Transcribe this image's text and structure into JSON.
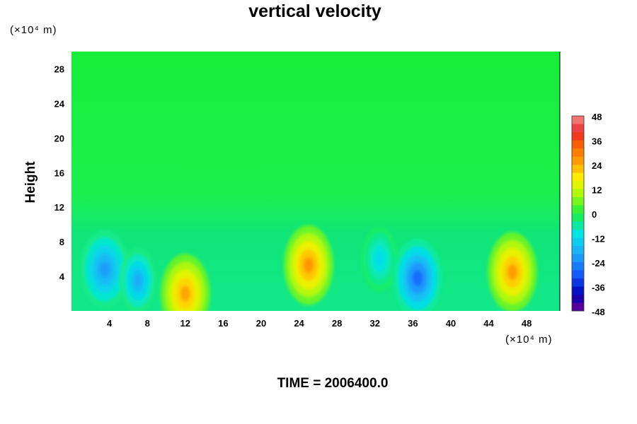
{
  "chart_data": {
    "type": "heatmap",
    "title": "vertical velocity",
    "ylabel": "Height",
    "x_unit": "(×10⁴ m)",
    "y_unit": "(×10⁴ m)",
    "xlim": [
      0,
      51.5
    ],
    "ylim": [
      0,
      30
    ],
    "x_ticks": [
      4,
      8,
      12,
      16,
      20,
      24,
      28,
      32,
      36,
      40,
      44,
      48
    ],
    "y_ticks": [
      4,
      8,
      12,
      16,
      20,
      24,
      28
    ],
    "colorbar": {
      "range": [
        -48,
        48
      ],
      "step": 4,
      "labels": [
        48,
        36,
        24,
        12,
        0,
        -12,
        -24,
        -36,
        -48
      ]
    },
    "features": [
      {
        "x": 3.5,
        "y": 4.8,
        "value": -22
      },
      {
        "x": 7.0,
        "y": 3.5,
        "value": -20
      },
      {
        "x": 12.0,
        "y": 2.0,
        "value": 25
      },
      {
        "x": 25.0,
        "y": 5.3,
        "value": 27
      },
      {
        "x": 32.5,
        "y": 6.0,
        "value": -12
      },
      {
        "x": 36.5,
        "y": 3.8,
        "value": -28
      },
      {
        "x": 46.5,
        "y": 4.5,
        "value": 26
      }
    ],
    "time_label": "TIME = 2006400.0"
  }
}
